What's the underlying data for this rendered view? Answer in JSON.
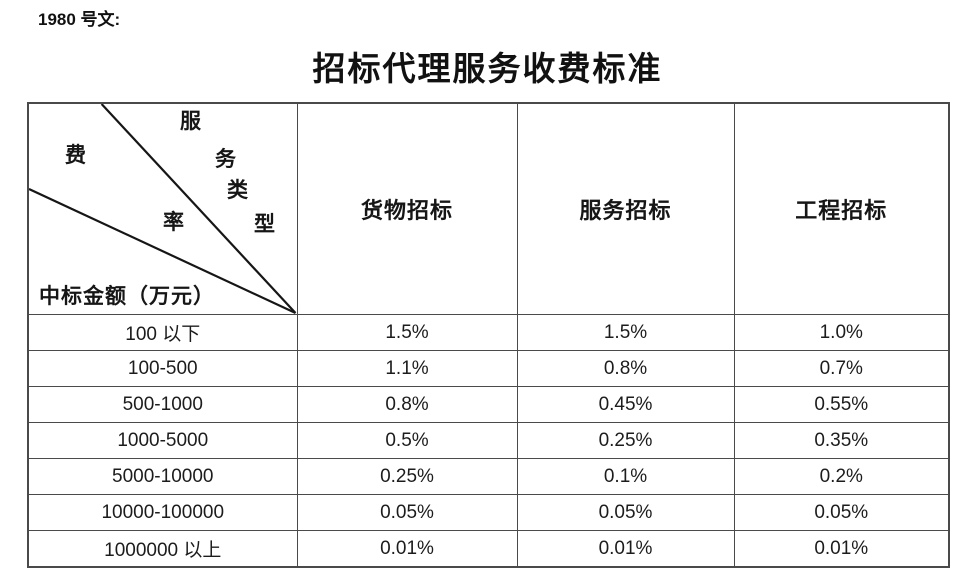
{
  "doc": {
    "ref_label": "1980 号文:",
    "title": "招标代理服务收费标准"
  },
  "table": {
    "corner": {
      "fee_rate_chars": [
        "费",
        "率"
      ],
      "service_type_chars": [
        "服",
        "务",
        "类",
        "型"
      ],
      "row_axis_label": "中标金额（万元）"
    },
    "columns": [
      "货物招标",
      "服务招标",
      "工程招标"
    ],
    "rows": [
      {
        "amount_range": "100 以下",
        "values": [
          "1.5%",
          "1.5%",
          "1.0%"
        ]
      },
      {
        "amount_range": "100-500",
        "values": [
          "1.1%",
          "0.8%",
          "0.7%"
        ]
      },
      {
        "amount_range": "500-1000",
        "values": [
          "0.8%",
          "0.45%",
          "0.55%"
        ]
      },
      {
        "amount_range": "1000-5000",
        "values": [
          "0.5%",
          "0.25%",
          "0.35%"
        ]
      },
      {
        "amount_range": "5000-10000",
        "values": [
          "0.25%",
          "0.1%",
          "0.2%"
        ]
      },
      {
        "amount_range": "10000-100000",
        "values": [
          "0.05%",
          "0.05%",
          "0.05%"
        ]
      },
      {
        "amount_range": "1000000 以上",
        "values": [
          "0.01%",
          "0.01%",
          "0.01%"
        ]
      }
    ]
  },
  "colors": {
    "border": "#4a4a4a",
    "text": "#1a1a1a",
    "background": "#ffffff"
  }
}
